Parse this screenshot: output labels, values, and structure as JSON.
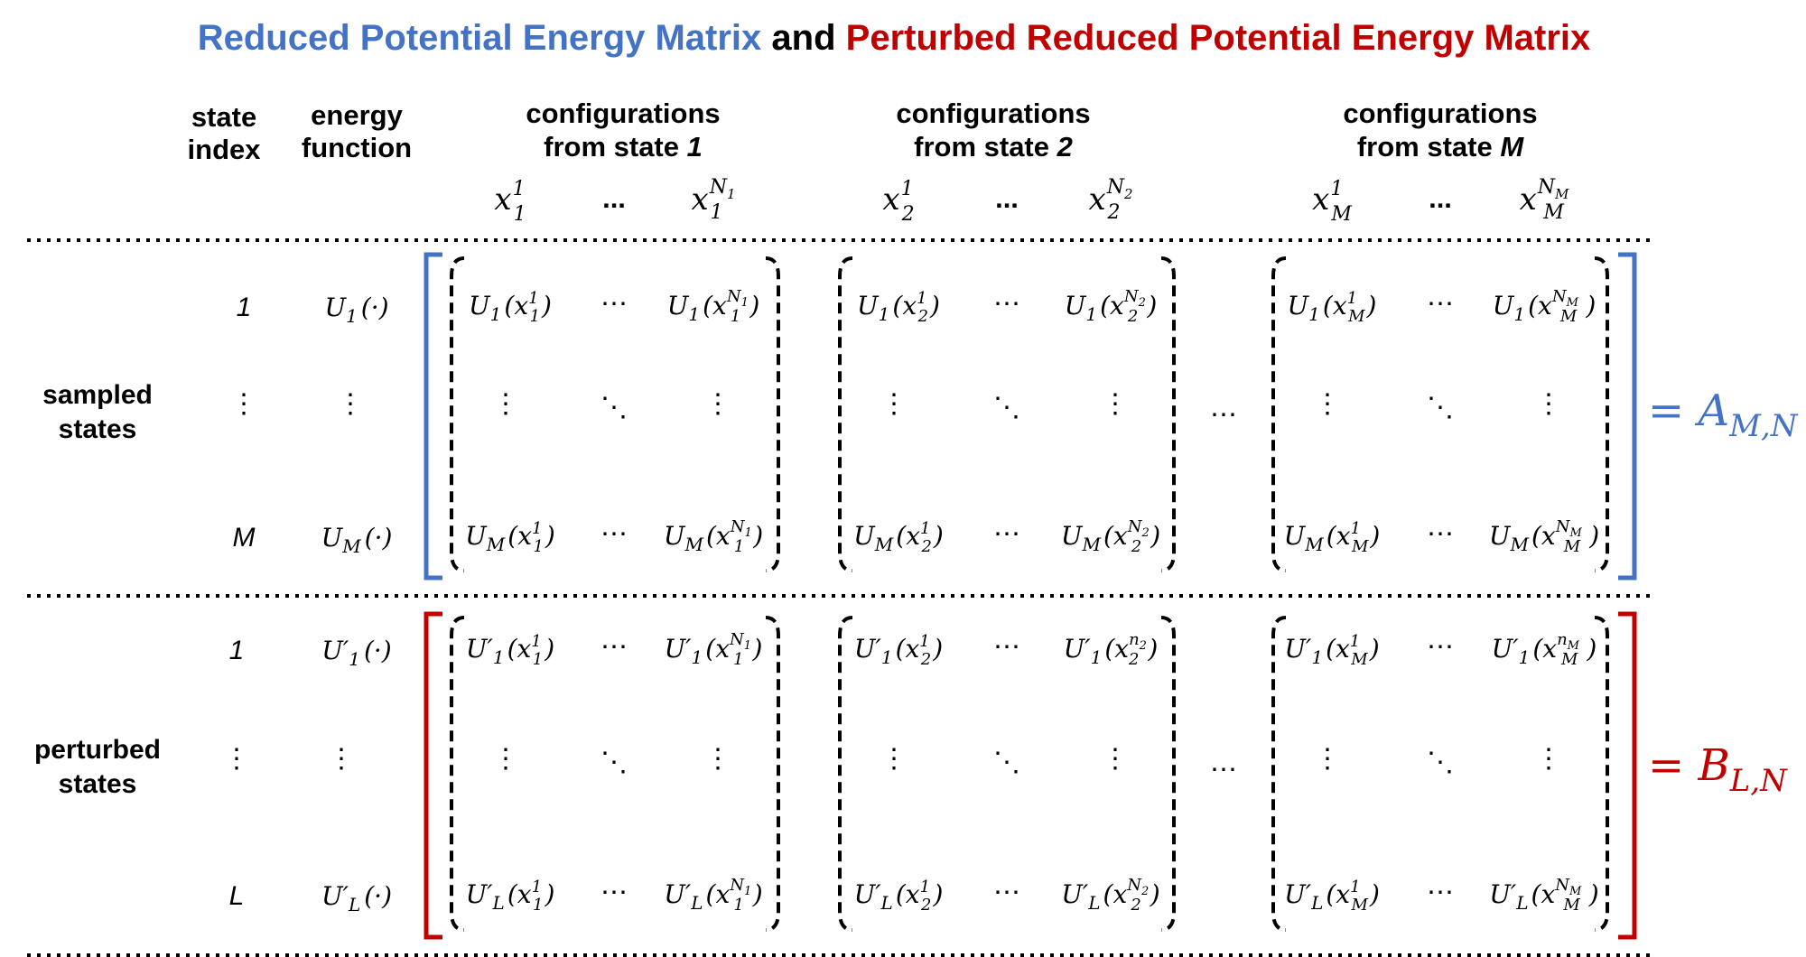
{
  "title": {
    "part1": "Reduced Potential Energy Matrix",
    "part2": " and ",
    "part3": "Perturbed Reduced Potential Energy Matrix",
    "color1": "#4472C4",
    "color3": "#C00000"
  },
  "headers": {
    "state_index": [
      "state",
      "index"
    ],
    "energy_function": [
      "energy",
      "function"
    ],
    "groups": [
      {
        "line1": "configurations",
        "line2_prefix": "from state ",
        "line2_state": "1",
        "cols": [
          "x",
          "x"
        ],
        "sub": "1",
        "sup_first": "1",
        "sup_last": "N",
        "sup_last_sub": "1"
      },
      {
        "line1": "configurations",
        "line2_prefix": "from state ",
        "line2_state": "2",
        "sub": "2",
        "sup_first": "1",
        "sup_last": "N",
        "sup_last_sub": "2"
      },
      {
        "line1": "configurations",
        "line2_prefix": "from state ",
        "line2_state": "M",
        "sub": "M",
        "sup_first": "1",
        "sup_last": "N",
        "sup_last_sub": "M"
      }
    ],
    "ellipsis": "..."
  },
  "sections": [
    {
      "label": [
        "sampled",
        "states"
      ],
      "indices": [
        "1",
        "⋮",
        "M"
      ],
      "functions": [
        {
          "base": "U",
          "sub": "1",
          "prime": ""
        },
        {
          "vdots": "⋮"
        },
        {
          "base": "U",
          "sub": "M",
          "prime": ""
        }
      ],
      "result": {
        "lhs": "=",
        "name": "A",
        "sub": "M,N"
      },
      "color": "#4472C4"
    },
    {
      "label": [
        "perturbed",
        "states"
      ],
      "indices": [
        "1",
        "⋮",
        "L"
      ],
      "functions": [
        {
          "base": "U",
          "sub": "1",
          "prime": "′"
        },
        {
          "vdots": "⋮"
        },
        {
          "base": "U",
          "sub": "L",
          "prime": "′"
        }
      ],
      "result": {
        "lhs": "=",
        "name": "B",
        "sub": "L,N"
      },
      "color": "#C00000"
    }
  ],
  "cell_symbols": {
    "hdots": "⋯",
    "vdots": "⋮",
    "ddots": "⋱",
    "between_blocks": "⋯",
    "dot_arg": "(·)"
  },
  "blocks": [
    {
      "sub": "1",
      "last_sup_sampled": "N",
      "last_sup_sub_sampled": "1",
      "last_sup_pert_top": "N",
      "last_sup_sub_pert_top": "1",
      "last_sup_pert_bot": "N",
      "last_sup_sub_pert_bot": "1"
    },
    {
      "sub": "2",
      "last_sup_sampled": "N",
      "last_sup_sub_sampled": "2",
      "last_sup_pert_top": "n",
      "last_sup_sub_pert_top": "2",
      "last_sup_pert_bot": "N",
      "last_sup_sub_pert_bot": "2"
    },
    {
      "sub": "M",
      "last_sup_sampled": "N",
      "last_sup_sub_sampled": "M",
      "last_sup_pert_top": "n",
      "last_sup_sub_pert_top": "M",
      "last_sup_pert_bot": "N",
      "last_sup_sub_pert_bot": "M"
    }
  ]
}
